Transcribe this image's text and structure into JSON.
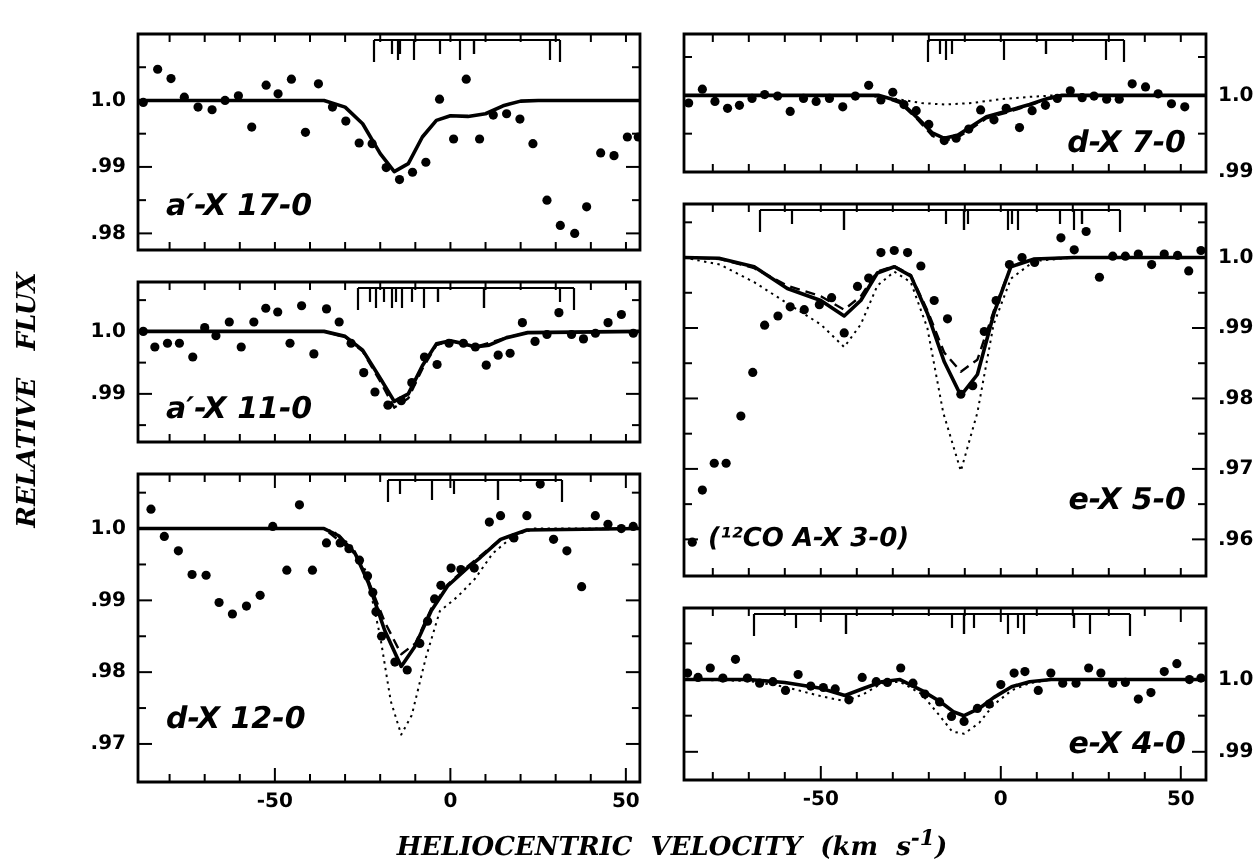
{
  "chart_data": [
    {
      "type": "line",
      "ylabel": "RELATIVE   FLUX",
      "annotations": [
        "a′-X 17-0"
      ],
      "xlim": [
        -89,
        54
      ],
      "ylim": [
        0.9775,
        1.01
      ],
      "tick_labels": "y",
      "xticks": [
        {
          "value": -80,
          "label": null
        },
        {
          "value": -70,
          "label": null
        },
        {
          "value": -60,
          "label": null
        },
        {
          "value": -50,
          "label": null
        },
        {
          "value": -40,
          "label": null
        },
        {
          "value": -30,
          "label": null
        },
        {
          "value": -20,
          "label": null
        },
        {
          "value": -10,
          "label": null
        },
        {
          "value": 0,
          "label": null
        },
        {
          "value": 10,
          "label": null
        },
        {
          "value": 20,
          "label": null
        },
        {
          "value": 30,
          "label": null
        },
        {
          "value": 40,
          "label": null
        },
        {
          "value": 50,
          "label": null
        }
      ],
      "yticks": [
        {
          "value": 0.98,
          "label": ".98"
        },
        {
          "value": 0.985,
          "label": null
        },
        {
          "value": 0.99,
          "label": ".99"
        },
        {
          "value": 0.995,
          "label": null
        },
        {
          "value": 1,
          "label": "1.0"
        },
        {
          "value": 1.005,
          "label": null
        }
      ],
      "series": [
        {
          "type": "scatter",
          "marker": "circle",
          "color": "#000000",
          "x": [
            -87.5,
            -83.4,
            -79.6,
            -75.8,
            -71.9,
            -67.9,
            -64.2,
            -60.4,
            -56.6,
            -52.5,
            -49.1,
            -45.3,
            -41.3,
            -37.6,
            -33.6,
            -29.8,
            -26.0,
            -22.3,
            -18.3,
            -14.5,
            -10.8,
            -7.0,
            -3.1,
            0.9,
            4.5,
            8.3,
            12.2,
            16.0,
            19.8,
            23.5,
            27.5,
            31.3,
            35.4,
            38.8,
            42.8,
            46.6,
            50.4,
            53.5
          ],
          "values": [
            0.9997,
            1.0047,
            1.0033,
            1.0005,
            0.999,
            0.9986,
            1.0,
            1.0007,
            0.996,
            1.0023,
            1.001,
            1.0032,
            0.9952,
            1.0025,
            0.999,
            0.9969,
            0.9936,
            0.9935,
            0.9899,
            0.9881,
            0.9892,
            0.9907,
            1.0002,
            0.9942,
            1.0032,
            0.9942,
            0.9978,
            0.998,
            0.9972,
            0.9935,
            0.985,
            0.9812,
            0.98,
            0.984,
            0.9921,
            0.9917,
            0.9945,
            0.9945
          ]
        },
        {
          "type": "line",
          "line_style": "solid",
          "marker": "none",
          "color": "#000000",
          "x": [
            -89,
            -36,
            -30,
            -25,
            -20,
            -16,
            -12,
            -8,
            -4,
            0,
            5,
            10,
            15,
            20,
            25,
            54
          ],
          "values": [
            1,
            1,
            0.999,
            0.9965,
            0.992,
            0.9893,
            0.9905,
            0.9945,
            0.997,
            0.9977,
            0.9976,
            0.998,
            0.9992,
            0.9999,
            1,
            1
          ]
        }
      ]
    },
    {
      "type": "line",
      "annotations": [
        "a′-X 11-0"
      ],
      "xlim": [
        -89,
        54
      ],
      "ylim": [
        0.9823,
        1.0079
      ],
      "tick_labels": "y",
      "xticks": [
        {
          "value": -80,
          "label": null
        },
        {
          "value": -70,
          "label": null
        },
        {
          "value": -60,
          "label": null
        },
        {
          "value": -50,
          "label": null
        },
        {
          "value": -40,
          "label": null
        },
        {
          "value": -30,
          "label": null
        },
        {
          "value": -20,
          "label": null
        },
        {
          "value": -10,
          "label": null
        },
        {
          "value": 0,
          "label": null
        },
        {
          "value": 10,
          "label": null
        },
        {
          "value": 20,
          "label": null
        },
        {
          "value": 30,
          "label": null
        },
        {
          "value": 40,
          "label": null
        },
        {
          "value": 50,
          "label": null
        }
      ],
      "yticks": [
        {
          "value": 0.985,
          "label": null
        },
        {
          "value": 0.99,
          "label": ".99"
        },
        {
          "value": 0.995,
          "label": null
        },
        {
          "value": 1,
          "label": "1.0"
        },
        {
          "value": 1.005,
          "label": null
        }
      ],
      "series": [
        {
          "type": "scatter",
          "marker": "circle",
          "color": "#000000",
          "x": [
            -87.5,
            -84.2,
            -80.6,
            -77.2,
            -73.4,
            -70.0,
            -66.8,
            -63.0,
            -59.6,
            -56.0,
            -52.6,
            -49.2,
            -45.7,
            -42.4,
            -38.9,
            -35.3,
            -31.7,
            -28.3,
            -24.7,
            -21.5,
            -17.8,
            -14.0,
            -11.0,
            -7.4,
            -3.8,
            -0.4,
            3.7,
            7.1,
            10.2,
            13.6,
            17.0,
            20.5,
            24.1,
            27.5,
            30.9,
            34.5,
            37.9,
            41.3,
            44.9,
            48.7,
            52.1
          ],
          "values": [
            1.0,
            0.9975,
            0.9981,
            0.9981,
            0.9959,
            1.0006,
            0.9993,
            1.0015,
            0.9975,
            1.0015,
            1.0037,
            1.0031,
            0.9981,
            1.0041,
            0.9964,
            1.0036,
            1.0015,
            0.9981,
            0.9934,
            0.9903,
            0.9882,
            0.9889,
            0.9918,
            0.9959,
            0.9947,
            0.9981,
            0.9981,
            0.9975,
            0.9946,
            0.9962,
            0.9965,
            1.0014,
            0.9984,
            0.9995,
            1.003,
            0.9995,
            0.9988,
            0.9997,
            1.0014,
            1.0027,
            0.9997
          ]
        },
        {
          "type": "line",
          "line_style": "solid",
          "marker": "none",
          "color": "#000000",
          "x": [
            -89,
            -36,
            -30,
            -25,
            -20,
            -16,
            -12,
            -8,
            -4,
            0,
            4,
            7,
            11,
            16,
            22,
            54
          ],
          "values": [
            1,
            1,
            0.9992,
            0.997,
            0.9925,
            0.9888,
            0.99,
            0.9945,
            0.998,
            0.9985,
            0.998,
            0.9975,
            0.9978,
            0.999,
            0.9998,
            1
          ]
        },
        {
          "type": "line",
          "line_style": "dashed",
          "marker": "none",
          "color": "#000000",
          "x": [
            -89,
            -36,
            -30,
            -25,
            -20,
            -16,
            -12,
            -8,
            -4,
            0,
            7,
            16,
            22,
            54
          ],
          "values": [
            1,
            1,
            0.9991,
            0.9968,
            0.992,
            0.9878,
            0.9893,
            0.994,
            0.9978,
            0.9985,
            0.9975,
            0.999,
            0.9998,
            1
          ]
        }
      ]
    },
    {
      "type": "line",
      "xlabel": "HELIOCENTRIC  VELOCITY  (km  s$^{-1}$)",
      "annotations": [
        "d-X 12-0"
      ],
      "xlim": [
        -89,
        54
      ],
      "ylim": [
        0.9647,
        1.0076
      ],
      "xticks": [
        {
          "value": -80,
          "label": null
        },
        {
          "value": -70,
          "label": null
        },
        {
          "value": -60,
          "label": null
        },
        -50,
        {
          "value": -40,
          "label": null
        },
        {
          "value": -30,
          "label": null
        },
        {
          "value": -20,
          "label": null
        },
        {
          "value": -10,
          "label": null
        },
        0,
        {
          "value": 10,
          "label": null
        },
        {
          "value": 20,
          "label": null
        },
        {
          "value": 30,
          "label": null
        },
        {
          "value": 40,
          "label": null
        },
        50
      ],
      "yticks": [
        {
          "value": 0.97,
          "label": ".97"
        },
        {
          "value": 0.975,
          "label": null
        },
        {
          "value": 0.98,
          "label": ".98"
        },
        {
          "value": 0.985,
          "label": null
        },
        {
          "value": 0.99,
          "label": ".99"
        },
        {
          "value": 0.995,
          "label": null
        },
        {
          "value": 1,
          "label": "1.0"
        },
        {
          "value": 1.005,
          "label": null
        }
      ],
      "series": [
        {
          "type": "scatter",
          "marker": "circle",
          "color": "#000000",
          "x": [
            -85.3,
            -81.5,
            -77.5,
            -73.6,
            -69.6,
            -65.9,
            -62.1,
            -58.1,
            -54.2,
            -50.6,
            -46.6,
            -43.0,
            -39.3,
            -35.3,
            -31.4,
            -28.9,
            -25.9,
            -23.6,
            -22.1,
            -21.2,
            -19.6,
            -15.8,
            -12.3,
            -8.7,
            -6.5,
            -4.5,
            -2.7,
            0.2,
            3.0,
            6.8,
            11.1,
            14.3,
            18.1,
            21.8,
            25.6,
            29.4,
            33.2,
            37.4,
            41.3,
            44.9,
            48.7,
            52.1
          ],
          "values": [
            1.0027,
            0.9989,
            0.9969,
            0.9936,
            0.9935,
            0.9897,
            0.9881,
            0.9892,
            0.9907,
            1.0003,
            0.9942,
            1.0033,
            0.9942,
            0.998,
            0.998,
            0.9972,
            0.9956,
            0.9934,
            0.9911,
            0.9884,
            0.985,
            0.9814,
            0.9803,
            0.984,
            0.9871,
            0.9902,
            0.9921,
            0.9945,
            0.9943,
            0.9945,
            1.0009,
            1.0018,
            0.9987,
            1.0018,
            1.0062,
            0.9985,
            0.9969,
            0.9919,
            1.0018,
            1.0006,
            1.0,
            1.0003
          ]
        },
        {
          "type": "line",
          "line_style": "solid",
          "marker": "none",
          "color": "#000000",
          "x": [
            -89,
            -36,
            -31.8,
            -27.1,
            -23.4,
            -18.7,
            -14,
            -10.2,
            -5.5,
            -0.8,
            4.8,
            8.6,
            14.3,
            21.8,
            54
          ],
          "values": [
            1,
            1,
            0.999,
            0.9965,
            0.9925,
            0.9858,
            0.9808,
            0.9835,
            0.9885,
            0.992,
            0.9945,
            0.996,
            0.9985,
            0.9998,
            1
          ]
        },
        {
          "type": "line",
          "line_style": "dashed",
          "marker": "none",
          "color": "#000000",
          "x": [
            -89,
            -36,
            -27,
            -23.4,
            -18.7,
            -14,
            -10,
            -5.5,
            -0.8,
            4.8,
            14.3,
            22,
            54
          ],
          "values": [
            1,
            1,
            0.9965,
            0.9928,
            0.987,
            0.9825,
            0.984,
            0.9888,
            0.9922,
            0.9947,
            0.9985,
            0.9998,
            1
          ]
        },
        {
          "type": "line",
          "line_style": "dotted",
          "marker": "none",
          "color": "#000000",
          "x": [
            -89,
            -36,
            -33,
            -28,
            -24,
            -20,
            -17,
            -14,
            -11,
            -7,
            -3,
            2,
            7,
            12,
            18,
            24,
            54
          ],
          "values": [
            1,
            1,
            0.9995,
            0.9975,
            0.994,
            0.985,
            0.976,
            0.9713,
            0.974,
            0.982,
            0.9885,
            0.9905,
            0.993,
            0.9965,
            0.999,
            1,
            1
          ]
        }
      ]
    },
    {
      "type": "line",
      "annotations": [
        "d-X 7-0"
      ],
      "xlim": [
        -88,
        57
      ],
      "ylim": [
        0.99,
        1.008
      ],
      "tick_labels": "y",
      "xticks": [
        {
          "value": -80,
          "label": null
        },
        {
          "value": -70,
          "label": null
        },
        {
          "value": -60,
          "label": null
        },
        {
          "value": -50,
          "label": null
        },
        {
          "value": -40,
          "label": null
        },
        {
          "value": -30,
          "label": null
        },
        {
          "value": -20,
          "label": null
        },
        {
          "value": -10,
          "label": null
        },
        {
          "value": 0,
          "label": null
        },
        {
          "value": 10,
          "label": null
        },
        {
          "value": 20,
          "label": null
        },
        {
          "value": 30,
          "label": null
        },
        {
          "value": 40,
          "label": null
        },
        {
          "value": 50,
          "label": null
        }
      ],
      "yticks": [
        {
          "value": 0.99,
          "label": ".99"
        },
        {
          "value": 0.995,
          "label": null
        },
        {
          "value": 1,
          "label": "1.0"
        },
        {
          "value": 1.005,
          "label": null
        }
      ],
      "series": [
        {
          "type": "scatter",
          "marker": "circle",
          "color": "#000000",
          "x": [
            -86.7,
            -82.9,
            -79.4,
            -75.9,
            -72.6,
            -69.1,
            -65.6,
            -62.0,
            -58.5,
            -54.8,
            -51.3,
            -47.6,
            -43.9,
            -40.4,
            -36.7,
            -33.3,
            -30.0,
            -26.9,
            -23.5,
            -20.0,
            -15.7,
            -12.4,
            -8.9,
            -5.6,
            -1.9,
            1.5,
            5.2,
            8.7,
            12.4,
            15.7,
            19.3,
            22.6,
            25.9,
            29.4,
            32.9,
            36.5,
            40.2,
            43.7,
            47.4,
            51.1
          ],
          "values": [
            0.999,
            1.0008,
            0.9992,
            0.9983,
            0.9987,
            0.9996,
            1.0001,
            0.9999,
            0.9979,
            0.9996,
            0.9992,
            0.9996,
            0.9985,
            0.9999,
            1.0013,
            0.9994,
            1.0004,
            0.9988,
            0.998,
            0.9962,
            0.9941,
            0.9944,
            0.9956,
            0.9981,
            0.9968,
            0.9983,
            0.9958,
            0.998,
            0.9987,
            0.9996,
            1.0006,
            0.9997,
            0.9999,
            0.9995,
            0.9995,
            1.0015,
            1.0011,
            1.0002,
            0.9989,
            0.9985
          ]
        },
        {
          "type": "line",
          "line_style": "solid",
          "marker": "none",
          "color": "#000000",
          "x": [
            -88,
            -34,
            -28,
            -23,
            -19,
            -15.7,
            -12,
            -8,
            -4,
            2,
            8,
            13,
            17,
            57
          ],
          "values": [
            1,
            1,
            0.9992,
            0.997,
            0.9951,
            0.9944,
            0.9948,
            0.996,
            0.9972,
            0.998,
            0.9988,
            0.9996,
            1,
            1
          ]
        },
        {
          "type": "line",
          "line_style": "dashed",
          "marker": "none",
          "color": "#000000",
          "x": [
            -88,
            -34,
            -28,
            -23,
            -19,
            -15.7,
            -12,
            -8,
            -4,
            2,
            8,
            13,
            18,
            57
          ],
          "values": [
            1,
            1,
            0.999,
            0.9968,
            0.9947,
            0.9941,
            0.9945,
            0.9957,
            0.997,
            0.9978,
            0.9987,
            0.9995,
            1,
            1
          ]
        },
        {
          "type": "line",
          "line_style": "dotted",
          "marker": "none",
          "color": "#000000",
          "x": [
            -88,
            -38,
            -30,
            -22,
            -15.7,
            -8,
            0,
            8,
            15,
            57
          ],
          "values": [
            1,
            1,
            0.9996,
            0.999,
            0.9988,
            0.999,
            0.9995,
            0.9998,
            1,
            1
          ]
        }
      ]
    },
    {
      "type": "line",
      "annotations": [
        "e-X 5-0",
        "(¹²CO A-X 3-0)"
      ],
      "xlim": [
        -88,
        57
      ],
      "ylim": [
        0.9548,
        1.0076
      ],
      "tick_labels": "y",
      "xticks": [
        {
          "value": -80,
          "label": null
        },
        {
          "value": -70,
          "label": null
        },
        {
          "value": -60,
          "label": null
        },
        {
          "value": -50,
          "label": null
        },
        {
          "value": -40,
          "label": null
        },
        {
          "value": -30,
          "label": null
        },
        {
          "value": -20,
          "label": null
        },
        {
          "value": -10,
          "label": null
        },
        {
          "value": 0,
          "label": null
        },
        {
          "value": 10,
          "label": null
        },
        {
          "value": 20,
          "label": null
        },
        {
          "value": 30,
          "label": null
        },
        {
          "value": 40,
          "label": null
        },
        {
          "value": 50,
          "label": null
        }
      ],
      "yticks": [
        {
          "value": 0.96,
          "label": ".96"
        },
        {
          "value": 0.965,
          "label": null
        },
        {
          "value": 0.97,
          "label": ".97"
        },
        {
          "value": 0.975,
          "label": null
        },
        {
          "value": 0.98,
          "label": ".98"
        },
        {
          "value": 0.985,
          "label": null
        },
        {
          "value": 0.99,
          "label": ".99"
        },
        {
          "value": 0.995,
          "label": null
        },
        {
          "value": 1,
          "label": "1.0"
        },
        {
          "value": 1.005,
          "label": null
        }
      ],
      "series": [
        {
          "type": "scatter",
          "marker": "circle",
          "color": "#000000",
          "x": [
            -85.7,
            -82.9,
            -79.6,
            -76.3,
            -72.2,
            -68.9,
            -65.6,
            -61.9,
            -58.5,
            -54.6,
            -50.4,
            -47.0,
            -43.5,
            -39.8,
            -36.7,
            -33.3,
            -29.6,
            -25.9,
            -22.2,
            -18.5,
            -14.8,
            -11.1,
            -7.8,
            -4.6,
            -1.3,
            2.4,
            5.9,
            9.4,
            16.7,
            20.4,
            23.7,
            27.4,
            31.1,
            34.6,
            38.2,
            41.9,
            45.4,
            49.1,
            52.2,
            55.6
          ],
          "values": [
            0.9596,
            0.967,
            0.9708,
            0.9708,
            0.9775,
            0.9837,
            0.9904,
            0.9917,
            0.993,
            0.9926,
            0.9933,
            0.9943,
            0.9893,
            0.9959,
            0.9971,
            1.0007,
            1.001,
            1.0007,
            0.9988,
            0.9939,
            0.9913,
            0.9806,
            0.9818,
            0.9895,
            0.9939,
            0.999,
            1.0,
            0.9993,
            1.0028,
            1.0011,
            1.0037,
            0.9972,
            1.0002,
            1.0002,
            1.0005,
            0.999,
            1.0005,
            1.0003,
            0.9981,
            1.001
          ]
        },
        {
          "type": "line",
          "line_style": "solid",
          "marker": "none",
          "color": "#000000",
          "x": [
            -88,
            -78.3,
            -68.5,
            -59.3,
            -50,
            -43.5,
            -38.9,
            -34.3,
            -29.6,
            -25,
            -20.4,
            -15.7,
            -11.1,
            -6.5,
            -1.9,
            2.8,
            9.3,
            20.4,
            57
          ],
          "values": [
            1,
            0.9999,
            0.9987,
            0.9956,
            0.9939,
            0.9917,
            0.9939,
            0.9978,
            0.9987,
            0.9974,
            0.9921,
            0.9852,
            0.9804,
            0.9834,
            0.9921,
            0.9987,
            0.9998,
            1,
            1
          ]
        },
        {
          "type": "line",
          "line_style": "dashed",
          "marker": "none",
          "color": "#000000",
          "x": [
            -88,
            -78,
            -68.5,
            -59.3,
            -50,
            -43.5,
            -38.9,
            -34.3,
            -29.6,
            -25,
            -20.4,
            -15.7,
            -11.1,
            -6.5,
            -1.9,
            2.8,
            9.3,
            20.4,
            57
          ],
          "values": [
            1,
            0.9998,
            0.9985,
            0.996,
            0.9945,
            0.9926,
            0.9945,
            0.998,
            0.9988,
            0.9975,
            0.9925,
            0.9865,
            0.9838,
            0.9855,
            0.9925,
            0.9987,
            0.9998,
            1,
            1
          ]
        },
        {
          "type": "line",
          "line_style": "dotted",
          "marker": "none",
          "color": "#000000",
          "x": [
            -88,
            -78,
            -68.5,
            -59.3,
            -50,
            -43.5,
            -38.9,
            -34.3,
            -29.6,
            -25,
            -20.4,
            -16,
            -11.1,
            -6.5,
            -2,
            2.8,
            9.3,
            20,
            57
          ],
          "values": [
            1,
            0.999,
            0.9965,
            0.9935,
            0.9905,
            0.9873,
            0.9905,
            0.996,
            0.998,
            0.9965,
            0.99,
            0.978,
            0.9697,
            0.978,
            0.9905,
            0.997,
            0.9995,
            1,
            1
          ]
        }
      ]
    },
    {
      "type": "line",
      "annotations": [
        "e-X 4-0"
      ],
      "xlim": [
        -88,
        57
      ],
      "ylim": [
        0.9861,
        1.0099
      ],
      "xticks": [
        {
          "value": -80,
          "label": null
        },
        {
          "value": -70,
          "label": null
        },
        {
          "value": -60,
          "label": null
        },
        -50,
        {
          "value": -40,
          "label": null
        },
        {
          "value": -30,
          "label": null
        },
        {
          "value": -20,
          "label": null
        },
        {
          "value": -10,
          "label": null
        },
        0,
        {
          "value": 10,
          "label": null
        },
        {
          "value": 20,
          "label": null
        },
        {
          "value": 30,
          "label": null
        },
        {
          "value": 40,
          "label": null
        },
        50
      ],
      "yticks": [
        {
          "value": 0.99,
          "label": ".99"
        },
        {
          "value": 0.995,
          "label": null
        },
        {
          "value": 1,
          "label": "1.0"
        },
        {
          "value": 1.005,
          "label": null
        }
      ],
      "series": [
        {
          "type": "scatter",
          "marker": "circle",
          "color": "#000000",
          "x": [
            -87.0,
            -84.1,
            -80.7,
            -77.2,
            -73.7,
            -70.4,
            -67.0,
            -63.3,
            -59.8,
            -56.3,
            -52.8,
            -49.3,
            -46.0,
            -42.2,
            -38.5,
            -34.6,
            -31.5,
            -27.8,
            -24.4,
            -21.1,
            -17.0,
            -13.7,
            -10.2,
            -6.5,
            -3.2,
            0.0,
            3.7,
            6.7,
            10.4,
            13.9,
            17.2,
            20.9,
            24.4,
            27.8,
            31.1,
            34.6,
            38.2,
            41.7,
            45.4,
            48.9,
            52.4,
            55.6
          ],
          "values": [
            1.0009,
            1.0003,
            1.0016,
            1.0002,
            1.0028,
            1.0002,
            0.9995,
            0.9997,
            0.9985,
            1.0007,
            0.9991,
            0.9989,
            0.9987,
            0.9972,
            1.0003,
            0.9997,
            0.9996,
            1.0016,
            0.9995,
            0.998,
            0.9969,
            0.9949,
            0.9942,
            0.996,
            0.9966,
            0.9993,
            1.0009,
            1.0011,
            0.9985,
            1.0009,
            0.9995,
            0.9995,
            1.0016,
            1.0009,
            0.9995,
            0.9996,
            0.9973,
            0.9982,
            1.0011,
            1.0022,
            1.0,
            1.0002
          ]
        },
        {
          "type": "line",
          "line_style": "solid",
          "marker": "none",
          "color": "#000000",
          "x": [
            -88,
            -70,
            -60,
            -50,
            -43.3,
            -38,
            -33,
            -28,
            -22,
            -17,
            -13,
            -10.2,
            -6,
            -2,
            3,
            8,
            14,
            57
          ],
          "values": [
            1,
            1,
            0.9996,
            0.9988,
            0.9978,
            0.9988,
            0.9997,
            1,
            0.9985,
            0.997,
            0.9955,
            0.995,
            0.996,
            0.9975,
            0.999,
            0.9997,
            1,
            1
          ]
        },
        {
          "type": "line",
          "line_style": "dotted",
          "marker": "none",
          "color": "#000000",
          "x": [
            -88,
            -70,
            -60,
            -50,
            -43.3,
            -38,
            -33,
            -28,
            -22,
            -17,
            -13.5,
            -10.2,
            -6,
            -2,
            3,
            8,
            14,
            57
          ],
          "values": [
            1,
            0.9998,
            0.999,
            0.9977,
            0.997,
            0.998,
            0.9995,
            0.9997,
            0.998,
            0.995,
            0.9928,
            0.9925,
            0.994,
            0.9965,
            0.9985,
            0.9995,
            1,
            1
          ]
        }
      ]
    }
  ]
}
